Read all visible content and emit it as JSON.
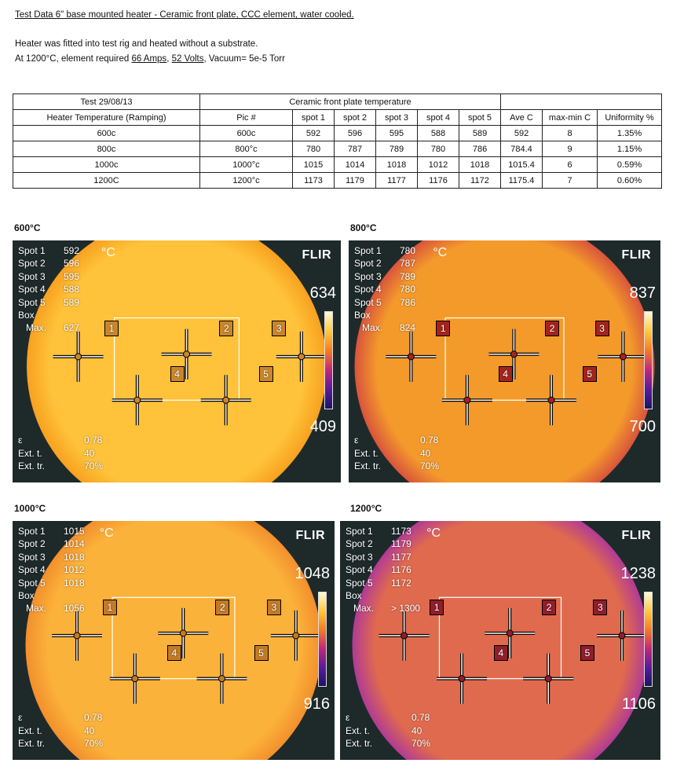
{
  "header": {
    "title": "Test Data 6\" base mounted heater - Ceramic front plate, CCC element, water cooled.",
    "line1": "Heater was fitted into test rig and heated without a substrate.",
    "line2_prefix": "At 1200°C,  element required ",
    "amps": "66 Amps",
    "sep1": ", ",
    "volts": "52 Volts",
    "vacuum": ", Vacuum= 5e-5 Torr"
  },
  "table": {
    "test_label": "Test 29/08/13",
    "group_label": "Ceramic front plate temperature",
    "columns": [
      "Heater Temperature (Ramping)",
      "Pic  #",
      "spot 1",
      "spot 2",
      "spot 3",
      "spot 4",
      "spot 5",
      "Ave C",
      "max-min C",
      "Uniformity %"
    ],
    "rows": [
      [
        "600c",
        "600c",
        "592",
        "596",
        "595",
        "588",
        "589",
        "592",
        "8",
        "1.35%"
      ],
      [
        "800c",
        "800°c",
        "780",
        "787",
        "789",
        "780",
        "786",
        "784.4",
        "9",
        "1.15%"
      ],
      [
        "1000c",
        "1000°c",
        "1015",
        "1014",
        "1018",
        "1012",
        "1018",
        "1015.4",
        "6",
        "0.59%"
      ],
      [
        "1200C",
        "1200°c",
        "1173",
        "1179",
        "1177",
        "1176",
        "1172",
        "1175.4",
        "7",
        "0.60%"
      ]
    ]
  },
  "thermal_common": {
    "spot_labels": [
      "Spot 1",
      "Spot 2",
      "Spot 3",
      "Spot 4",
      "Spot 5"
    ],
    "box_label": "Box",
    "max_label": "Max.",
    "unit": "°C",
    "brand": "FLIR",
    "emissivity_label": "ε",
    "ext_t_label": "Ext. t.",
    "ext_tr_label": "Ext. tr.",
    "markers": [
      "1",
      "2",
      "3",
      "4",
      "5"
    ]
  },
  "images": [
    {
      "caption": "600°C",
      "spots": [
        "592",
        "596",
        "595",
        "588",
        "589"
      ],
      "max": "627",
      "scale_max": "634",
      "scale_min": "409",
      "emissivity": "0.78",
      "ext_t": "40",
      "ext_tr": "70%",
      "colors": {
        "disc_center": "#ffc23a",
        "disc_edge": "#f7a11f",
        "bg": "#1e2a2a",
        "marker": "#c9862a"
      }
    },
    {
      "caption": "800°C",
      "spots": [
        "780",
        "787",
        "789",
        "780",
        "786"
      ],
      "max": "824",
      "scale_max": "837",
      "scale_min": "700",
      "emissivity": "0.78",
      "ext_t": "40",
      "ext_tr": "70%",
      "colors": {
        "disc_center": "#f49a2b",
        "disc_edge": "#d8543c",
        "bg": "#1e2a2a",
        "marker": "#a4241c"
      }
    },
    {
      "caption": "1000°C",
      "spots": [
        "1015",
        "1014",
        "1018",
        "1012",
        "1018"
      ],
      "max": "1056",
      "scale_max": "1048",
      "scale_min": "916",
      "emissivity": "0.78",
      "ext_t": "40",
      "ext_tr": "70%",
      "colors": {
        "disc_center": "#fbb23a",
        "disc_edge": "#f28f2d",
        "bg": "#1e2a2a",
        "marker": "#c47a24"
      }
    },
    {
      "caption": "1200°C",
      "spots": [
        "1173",
        "1179",
        "1177",
        "1176",
        "1172"
      ],
      "max": "> 1300",
      "scale_max": "1238",
      "scale_min": "1106",
      "emissivity": "0.78",
      "ext_t": "40",
      "ext_tr": "70%",
      "colors": {
        "disc_center": "#e06a4d",
        "disc_edge": "#b13b95",
        "bg": "#1e2a2a",
        "marker": "#901e2c"
      }
    }
  ]
}
